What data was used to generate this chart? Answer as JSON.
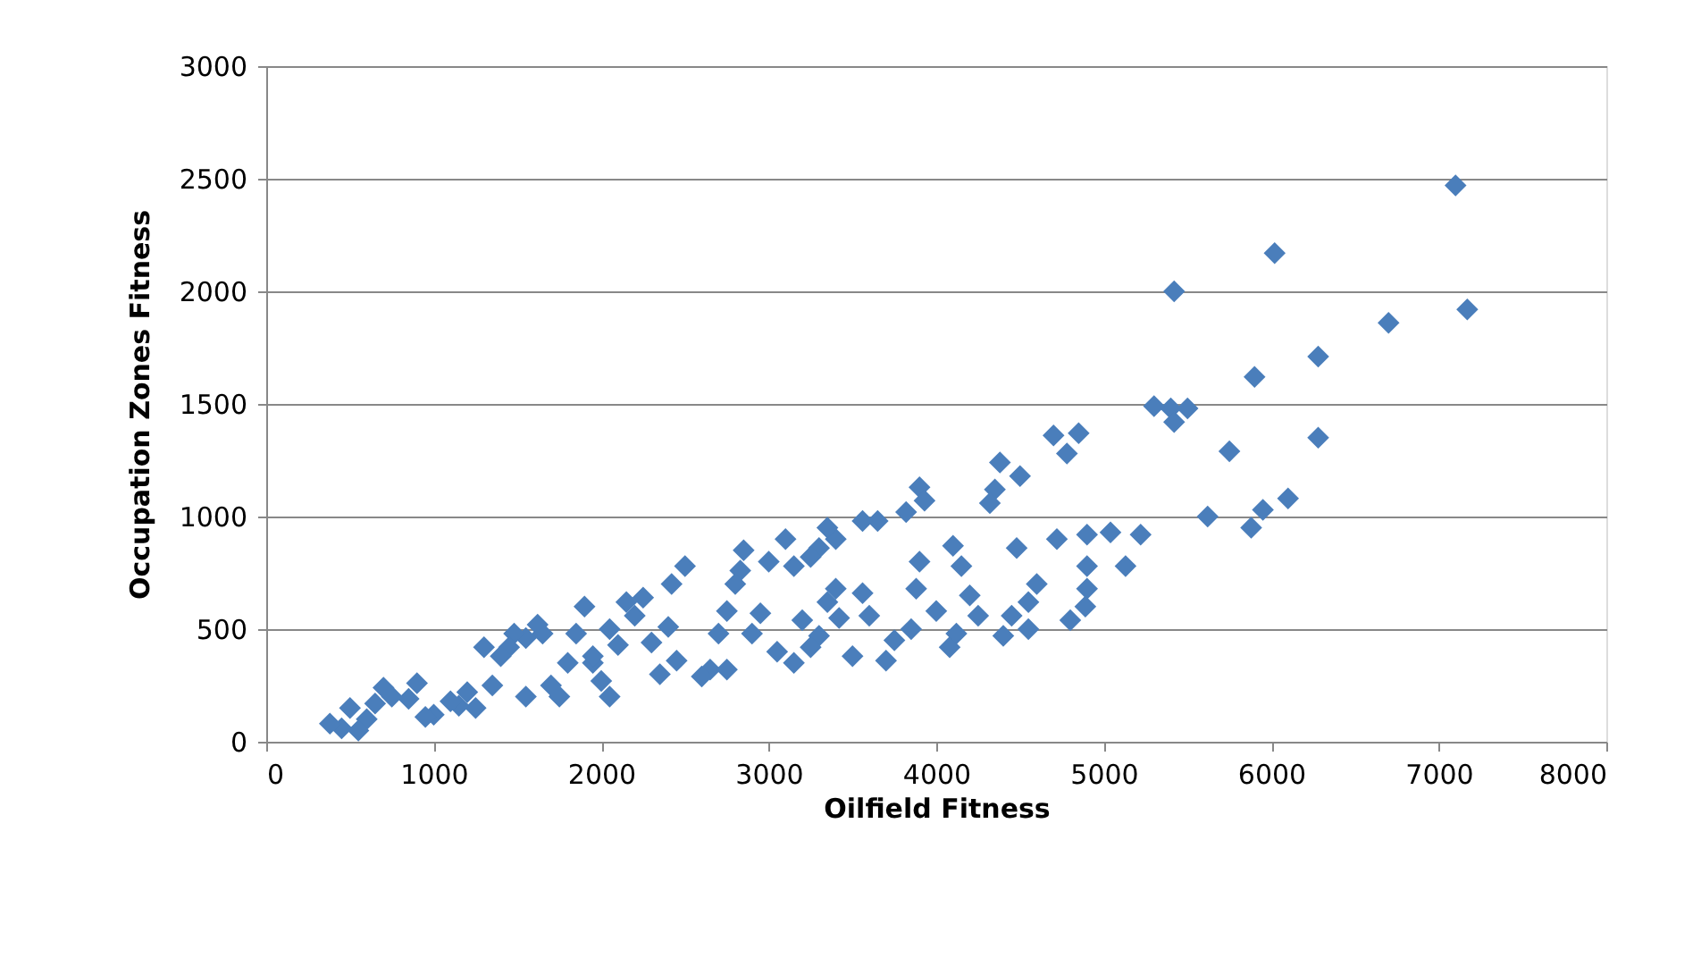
{
  "chart_data": {
    "type": "scatter",
    "xlabel": "Oilfield Fitness",
    "ylabel": "Occupation Zones Fitness",
    "xlim": [
      0,
      8000
    ],
    "ylim": [
      0,
      3000
    ],
    "xticks": [
      0,
      1000,
      2000,
      3000,
      4000,
      5000,
      6000,
      7000,
      8000
    ],
    "yticks": [
      0,
      500,
      1000,
      1500,
      2000,
      2500,
      3000
    ],
    "grid": "y",
    "marker": "diamond",
    "series": [
      {
        "color": "#4a7ebb",
        "x": [
          7100,
          7170,
          6020,
          5420,
          6700,
          6280,
          5900,
          5750,
          6280,
          5880,
          5950,
          6100,
          5620,
          5400,
          5300,
          5500,
          5420,
          5220,
          5130,
          5040,
          4900,
          4900,
          4900,
          4890,
          4800,
          4850,
          4780,
          4700,
          4720,
          4600,
          4550,
          4480,
          4500,
          4380,
          4350,
          4320,
          4450,
          4400,
          4550,
          4250,
          4100,
          4150,
          4200,
          4000,
          4080,
          4120,
          3900,
          3820,
          3930,
          3900,
          3880,
          3850,
          3750,
          3700,
          3650,
          3560,
          3560,
          3600,
          3400,
          3350,
          3300,
          3250,
          3150,
          3100,
          3400,
          3350,
          3420,
          3300,
          3250,
          3150,
          3050,
          3000,
          2950,
          2900,
          2850,
          2830,
          2800,
          2750,
          2700,
          2650,
          2750,
          2500,
          2420,
          2400,
          2450,
          2350,
          2300,
          2250,
          2200,
          2150,
          2100,
          2050,
          2000,
          1950,
          1900,
          1850,
          1800,
          1750,
          1700,
          1650,
          1620,
          1550,
          1480,
          1450,
          1400,
          1350,
          1300,
          1250,
          1200,
          1150,
          1100,
          1000,
          950,
          900,
          850,
          750,
          700,
          650,
          600,
          550,
          500,
          450,
          380,
          3500,
          3200,
          2600,
          2050,
          1550,
          1950
        ],
        "values": [
          2470,
          1920,
          2170,
          2000,
          1860,
          1710,
          1620,
          1290,
          1350,
          950,
          1030,
          1080,
          1000,
          1480,
          1490,
          1480,
          1420,
          920,
          780,
          930,
          920,
          780,
          680,
          600,
          540,
          1370,
          1280,
          1360,
          900,
          700,
          620,
          860,
          1180,
          1240,
          1120,
          1060,
          560,
          470,
          500,
          560,
          870,
          780,
          650,
          580,
          420,
          480,
          1130,
          1020,
          1070,
          800,
          680,
          500,
          450,
          360,
          980,
          980,
          660,
          560,
          900,
          950,
          860,
          820,
          780,
          900,
          680,
          620,
          550,
          470,
          420,
          350,
          400,
          800,
          570,
          480,
          850,
          760,
          700,
          580,
          480,
          320,
          320,
          780,
          700,
          510,
          360,
          300,
          440,
          640,
          560,
          620,
          430,
          500,
          270,
          350,
          600,
          480,
          350,
          200,
          250,
          480,
          520,
          460,
          480,
          420,
          380,
          250,
          420,
          150,
          220,
          160,
          180,
          120,
          110,
          260,
          190,
          200,
          240,
          170,
          100,
          50,
          150,
          60,
          80,
          380,
          540,
          290,
          200,
          200,
          380
        ]
      }
    ]
  }
}
